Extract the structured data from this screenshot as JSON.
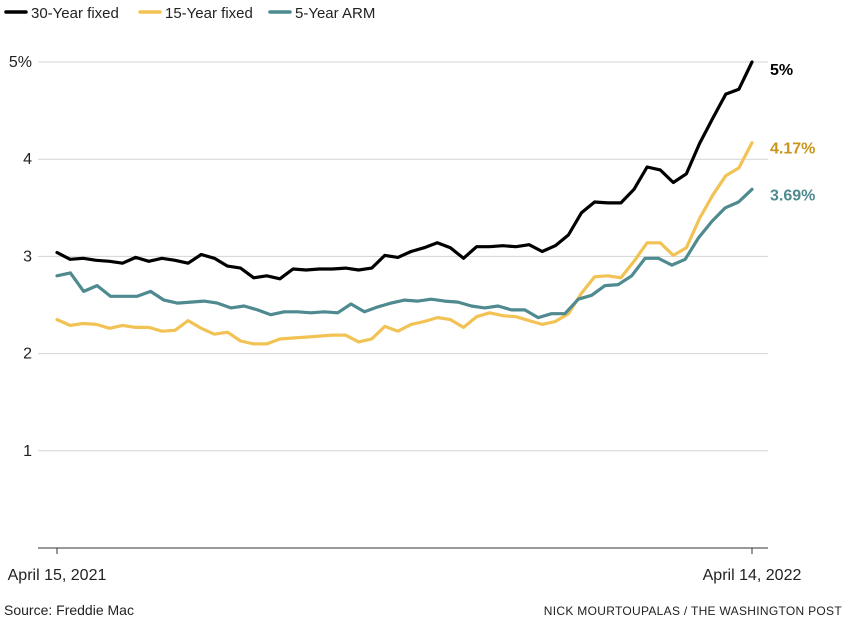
{
  "chart_data": {
    "type": "line",
    "ylim": [
      0,
      5
    ],
    "yticks": [
      1,
      2,
      3,
      4,
      5
    ],
    "ytick_labels": [
      "1",
      "2",
      "3",
      "4",
      "5%"
    ],
    "x_start_label": "April 15, 2021",
    "x_end_label": "April 14, 2022",
    "grid": true,
    "legend_placement": "top-left",
    "series": [
      {
        "name": "30-Year fixed",
        "color": "#000000",
        "end_label": "5%",
        "label_color": "#000000",
        "values": [
          3.04,
          2.97,
          2.98,
          2.96,
          2.95,
          2.93,
          2.99,
          2.95,
          2.98,
          2.96,
          2.93,
          3.02,
          2.98,
          2.9,
          2.88,
          2.78,
          2.8,
          2.77,
          2.87,
          2.86,
          2.87,
          2.87,
          2.88,
          2.86,
          2.88,
          3.01,
          2.99,
          3.05,
          3.09,
          3.14,
          3.09,
          2.98,
          3.1,
          3.1,
          3.11,
          3.1,
          3.12,
          3.05,
          3.11,
          3.22,
          3.45,
          3.56,
          3.55,
          3.55,
          3.69,
          3.92,
          3.89,
          3.76,
          3.85,
          4.16,
          4.42,
          4.67,
          4.72,
          5.0
        ]
      },
      {
        "name": "15-Year fixed",
        "color": "#f2c354",
        "end_label": "4.17%",
        "label_color": "#c9951c",
        "values": [
          2.35,
          2.29,
          2.31,
          2.3,
          2.26,
          2.29,
          2.27,
          2.27,
          2.23,
          2.24,
          2.34,
          2.26,
          2.2,
          2.22,
          2.13,
          2.1,
          2.1,
          2.15,
          2.16,
          2.17,
          2.18,
          2.19,
          2.19,
          2.12,
          2.15,
          2.28,
          2.23,
          2.3,
          2.33,
          2.37,
          2.35,
          2.27,
          2.38,
          2.42,
          2.39,
          2.38,
          2.34,
          2.3,
          2.33,
          2.41,
          2.62,
          2.79,
          2.8,
          2.78,
          2.95,
          3.14,
          3.14,
          3.01,
          3.09,
          3.39,
          3.63,
          3.83,
          3.91,
          4.17
        ]
      },
      {
        "name": "5-Year ARM",
        "color": "#4e8a8f",
        "end_label": "3.69%",
        "label_color": "#4e8a8f",
        "values": [
          2.8,
          2.83,
          2.64,
          2.7,
          2.59,
          2.59,
          2.59,
          2.64,
          2.55,
          2.52,
          2.53,
          2.54,
          2.52,
          2.47,
          2.49,
          2.45,
          2.4,
          2.43,
          2.43,
          2.42,
          2.43,
          2.42,
          2.51,
          2.43,
          2.48,
          2.52,
          2.55,
          2.54,
          2.56,
          2.54,
          2.53,
          2.49,
          2.47,
          2.49,
          2.45,
          2.45,
          2.37,
          2.41,
          2.41,
          2.56,
          2.6,
          2.7,
          2.71,
          2.8,
          2.98,
          2.98,
          2.91,
          2.97,
          3.19,
          3.36,
          3.5,
          3.56,
          3.69
        ]
      }
    ]
  },
  "footer": {
    "source": "Source: Freddie Mac",
    "credit": "NICK MOURTOUPALAS / THE WASHINGTON POST"
  }
}
